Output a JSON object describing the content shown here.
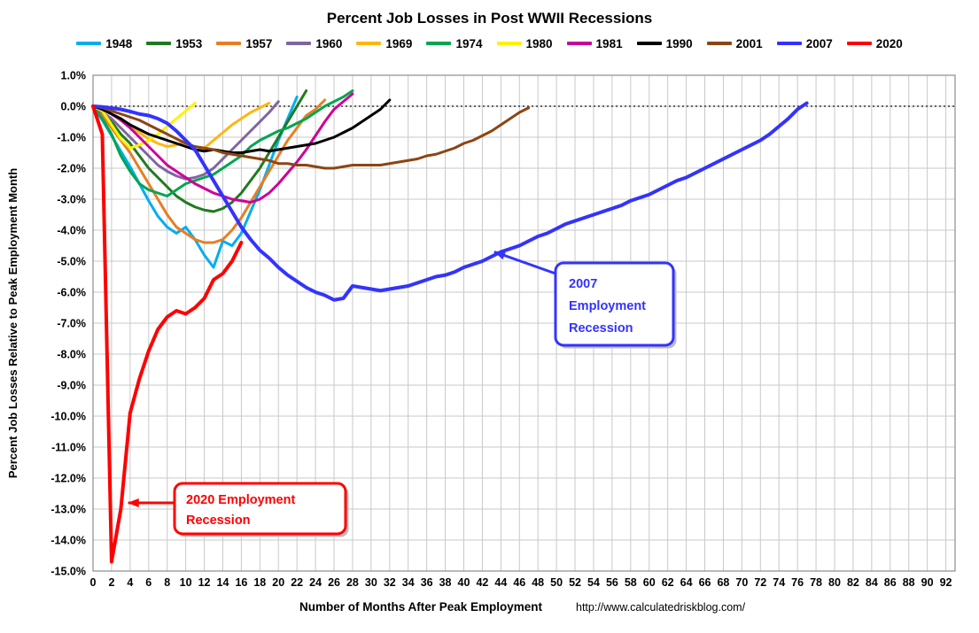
{
  "page": {
    "title": "Percent Job Losses in Post WWII Recessions",
    "source_url": "http://www.calculatedriskblog.com/"
  },
  "chart_data": {
    "type": "line",
    "title": "Percent Job Losses in Post WWII Recessions",
    "xlabel": "Number of Months After Peak Employment",
    "ylabel": "Percent Job Losses Relative to Peak Employment Month",
    "xlim": [
      0,
      93
    ],
    "ylim": [
      -15,
      1
    ],
    "grid": true,
    "legend_position": "top",
    "zero_line": "dotted",
    "x_ticks": [
      0,
      2,
      4,
      6,
      8,
      10,
      12,
      14,
      16,
      18,
      20,
      22,
      24,
      26,
      28,
      30,
      32,
      34,
      36,
      38,
      40,
      42,
      44,
      46,
      48,
      50,
      52,
      54,
      56,
      58,
      60,
      62,
      64,
      66,
      68,
      70,
      72,
      74,
      76,
      78,
      80,
      82,
      84,
      86,
      88,
      90,
      92
    ],
    "y_ticks": [
      1,
      0,
      -1,
      -2,
      -3,
      -4,
      -5,
      -6,
      -7,
      -8,
      -9,
      -10,
      -11,
      -12,
      -13,
      -14,
      -15
    ],
    "y_tick_format": "percent_one_decimal",
    "series": [
      {
        "name": "1948",
        "color": "#00AEEF",
        "values": [
          0,
          -0.45,
          -0.95,
          -1.45,
          -1.95,
          -2.5,
          -3.05,
          -3.55,
          -3.9,
          -4.1,
          -3.9,
          -4.3,
          -4.8,
          -5.2,
          -4.35,
          -4.5,
          -4.1,
          -3.4,
          -2.7,
          -1.9,
          -1.1,
          -0.4,
          0.3
        ]
      },
      {
        "name": "1953",
        "color": "#1F7A1F",
        "values": [
          0,
          -0.2,
          -0.5,
          -0.9,
          -1.2,
          -1.6,
          -2.0,
          -2.3,
          -2.6,
          -2.9,
          -3.1,
          -3.25,
          -3.35,
          -3.4,
          -3.3,
          -3.1,
          -2.8,
          -2.4,
          -2.0,
          -1.5,
          -1.0,
          -0.5,
          0.0,
          0.5
        ]
      },
      {
        "name": "1957",
        "color": "#E87D22",
        "values": [
          0,
          -0.3,
          -0.7,
          -1.1,
          -1.5,
          -2.0,
          -2.5,
          -3.0,
          -3.5,
          -3.9,
          -4.1,
          -4.3,
          -4.4,
          -4.4,
          -4.3,
          -4.0,
          -3.6,
          -3.1,
          -2.6,
          -2.1,
          -1.6,
          -1.1,
          -0.7,
          -0.3,
          -0.1,
          0.2
        ]
      },
      {
        "name": "1960",
        "color": "#8064A2",
        "values": [
          0,
          -0.2,
          -0.4,
          -0.7,
          -1.0,
          -1.3,
          -1.6,
          -1.9,
          -2.1,
          -2.25,
          -2.35,
          -2.3,
          -2.2,
          -2.0,
          -1.7,
          -1.4,
          -1.1,
          -0.8,
          -0.5,
          -0.2,
          0.15
        ]
      },
      {
        "name": "1969",
        "color": "#FFB612",
        "values": [
          0,
          -0.1,
          -0.25,
          -0.45,
          -0.65,
          -0.85,
          -1.05,
          -1.2,
          -1.3,
          -1.25,
          -1.15,
          -1.45,
          -1.35,
          -1.1,
          -0.85,
          -0.6,
          -0.4,
          -0.2,
          -0.05,
          0.1
        ]
      },
      {
        "name": "1974",
        "color": "#00A550",
        "values": [
          0,
          -0.4,
          -0.9,
          -1.6,
          -2.1,
          -2.5,
          -2.7,
          -2.8,
          -2.9,
          -2.7,
          -2.5,
          -2.4,
          -2.3,
          -2.2,
          -2.0,
          -1.8,
          -1.6,
          -1.3,
          -1.1,
          -0.95,
          -0.8,
          -0.7,
          -0.55,
          -0.4,
          -0.2,
          0.0,
          0.15,
          0.3,
          0.5
        ]
      },
      {
        "name": "1980",
        "color": "#FFF200",
        "values": [
          0,
          -0.15,
          -0.6,
          -1.05,
          -1.35,
          -1.25,
          -1.1,
          -0.9,
          -0.65,
          -0.4,
          -0.15,
          0.1
        ]
      },
      {
        "name": "1981",
        "color": "#CC0099",
        "values": [
          0,
          -0.1,
          -0.25,
          -0.45,
          -0.7,
          -1.0,
          -1.3,
          -1.6,
          -1.9,
          -2.1,
          -2.3,
          -2.5,
          -2.65,
          -2.8,
          -2.9,
          -3.0,
          -3.05,
          -3.1,
          -3.0,
          -2.8,
          -2.5,
          -2.15,
          -1.8,
          -1.4,
          -0.95,
          -0.5,
          -0.1,
          0.15,
          0.4
        ]
      },
      {
        "name": "1990",
        "color": "#000000",
        "values": [
          0,
          -0.1,
          -0.25,
          -0.4,
          -0.6,
          -0.75,
          -0.9,
          -1.0,
          -1.1,
          -1.2,
          -1.3,
          -1.4,
          -1.45,
          -1.4,
          -1.45,
          -1.5,
          -1.5,
          -1.45,
          -1.4,
          -1.45,
          -1.4,
          -1.35,
          -1.3,
          -1.25,
          -1.2,
          -1.1,
          -1.0,
          -0.85,
          -0.7,
          -0.5,
          -0.3,
          -0.1,
          0.2
        ]
      },
      {
        "name": "2001",
        "color": "#8B4513",
        "values": [
          0,
          -0.05,
          -0.15,
          -0.25,
          -0.35,
          -0.45,
          -0.6,
          -0.75,
          -0.9,
          -1.05,
          -1.2,
          -1.3,
          -1.35,
          -1.4,
          -1.5,
          -1.55,
          -1.6,
          -1.65,
          -1.7,
          -1.75,
          -1.85,
          -1.85,
          -1.9,
          -1.9,
          -1.95,
          -2.0,
          -2.0,
          -1.95,
          -1.9,
          -1.9,
          -1.9,
          -1.9,
          -1.85,
          -1.8,
          -1.75,
          -1.7,
          -1.6,
          -1.55,
          -1.45,
          -1.35,
          -1.2,
          -1.1,
          -0.95,
          -0.8,
          -0.6,
          -0.4,
          -0.2,
          -0.05
        ]
      },
      {
        "name": "2007",
        "color": "#3333FF",
        "values": [
          0,
          -0.02,
          -0.06,
          -0.1,
          -0.17,
          -0.25,
          -0.3,
          -0.4,
          -0.55,
          -0.8,
          -1.1,
          -1.4,
          -1.9,
          -2.4,
          -2.9,
          -3.4,
          -3.9,
          -4.3,
          -4.65,
          -4.9,
          -5.2,
          -5.45,
          -5.65,
          -5.85,
          -6.0,
          -6.1,
          -6.25,
          -6.2,
          -5.8,
          -5.85,
          -5.9,
          -5.95,
          -5.9,
          -5.85,
          -5.8,
          -5.7,
          -5.6,
          -5.5,
          -5.45,
          -5.35,
          -5.2,
          -5.1,
          -5.0,
          -4.85,
          -4.7,
          -4.6,
          -4.5,
          -4.35,
          -4.2,
          -4.1,
          -3.95,
          -3.8,
          -3.7,
          -3.6,
          -3.5,
          -3.4,
          -3.3,
          -3.2,
          -3.05,
          -2.95,
          -2.85,
          -2.7,
          -2.55,
          -2.4,
          -2.3,
          -2.15,
          -2.0,
          -1.85,
          -1.7,
          -1.55,
          -1.4,
          -1.25,
          -1.1,
          -0.9,
          -0.65,
          -0.4,
          -0.1,
          0.1
        ]
      },
      {
        "name": "2020",
        "color": "#FF0000",
        "values": [
          0,
          -0.9,
          -14.7,
          -13.0,
          -9.9,
          -8.8,
          -7.9,
          -7.2,
          -6.8,
          -6.6,
          -6.7,
          -6.5,
          -6.2,
          -5.6,
          -5.4,
          -5.0,
          -4.4
        ]
      }
    ],
    "annotations": [
      {
        "id": "a2007",
        "lines": [
          "2007",
          "Employment",
          "Recession"
        ],
        "color": "#3333FF",
        "arrow_target": {
          "month": 43.3,
          "pct": -4.7
        }
      },
      {
        "id": "a2020",
        "lines": [
          "2020 Employment",
          "Recession"
        ],
        "color": "#FF0000",
        "arrow_target": {
          "month": 3.8,
          "pct": -12.8
        }
      }
    ]
  }
}
